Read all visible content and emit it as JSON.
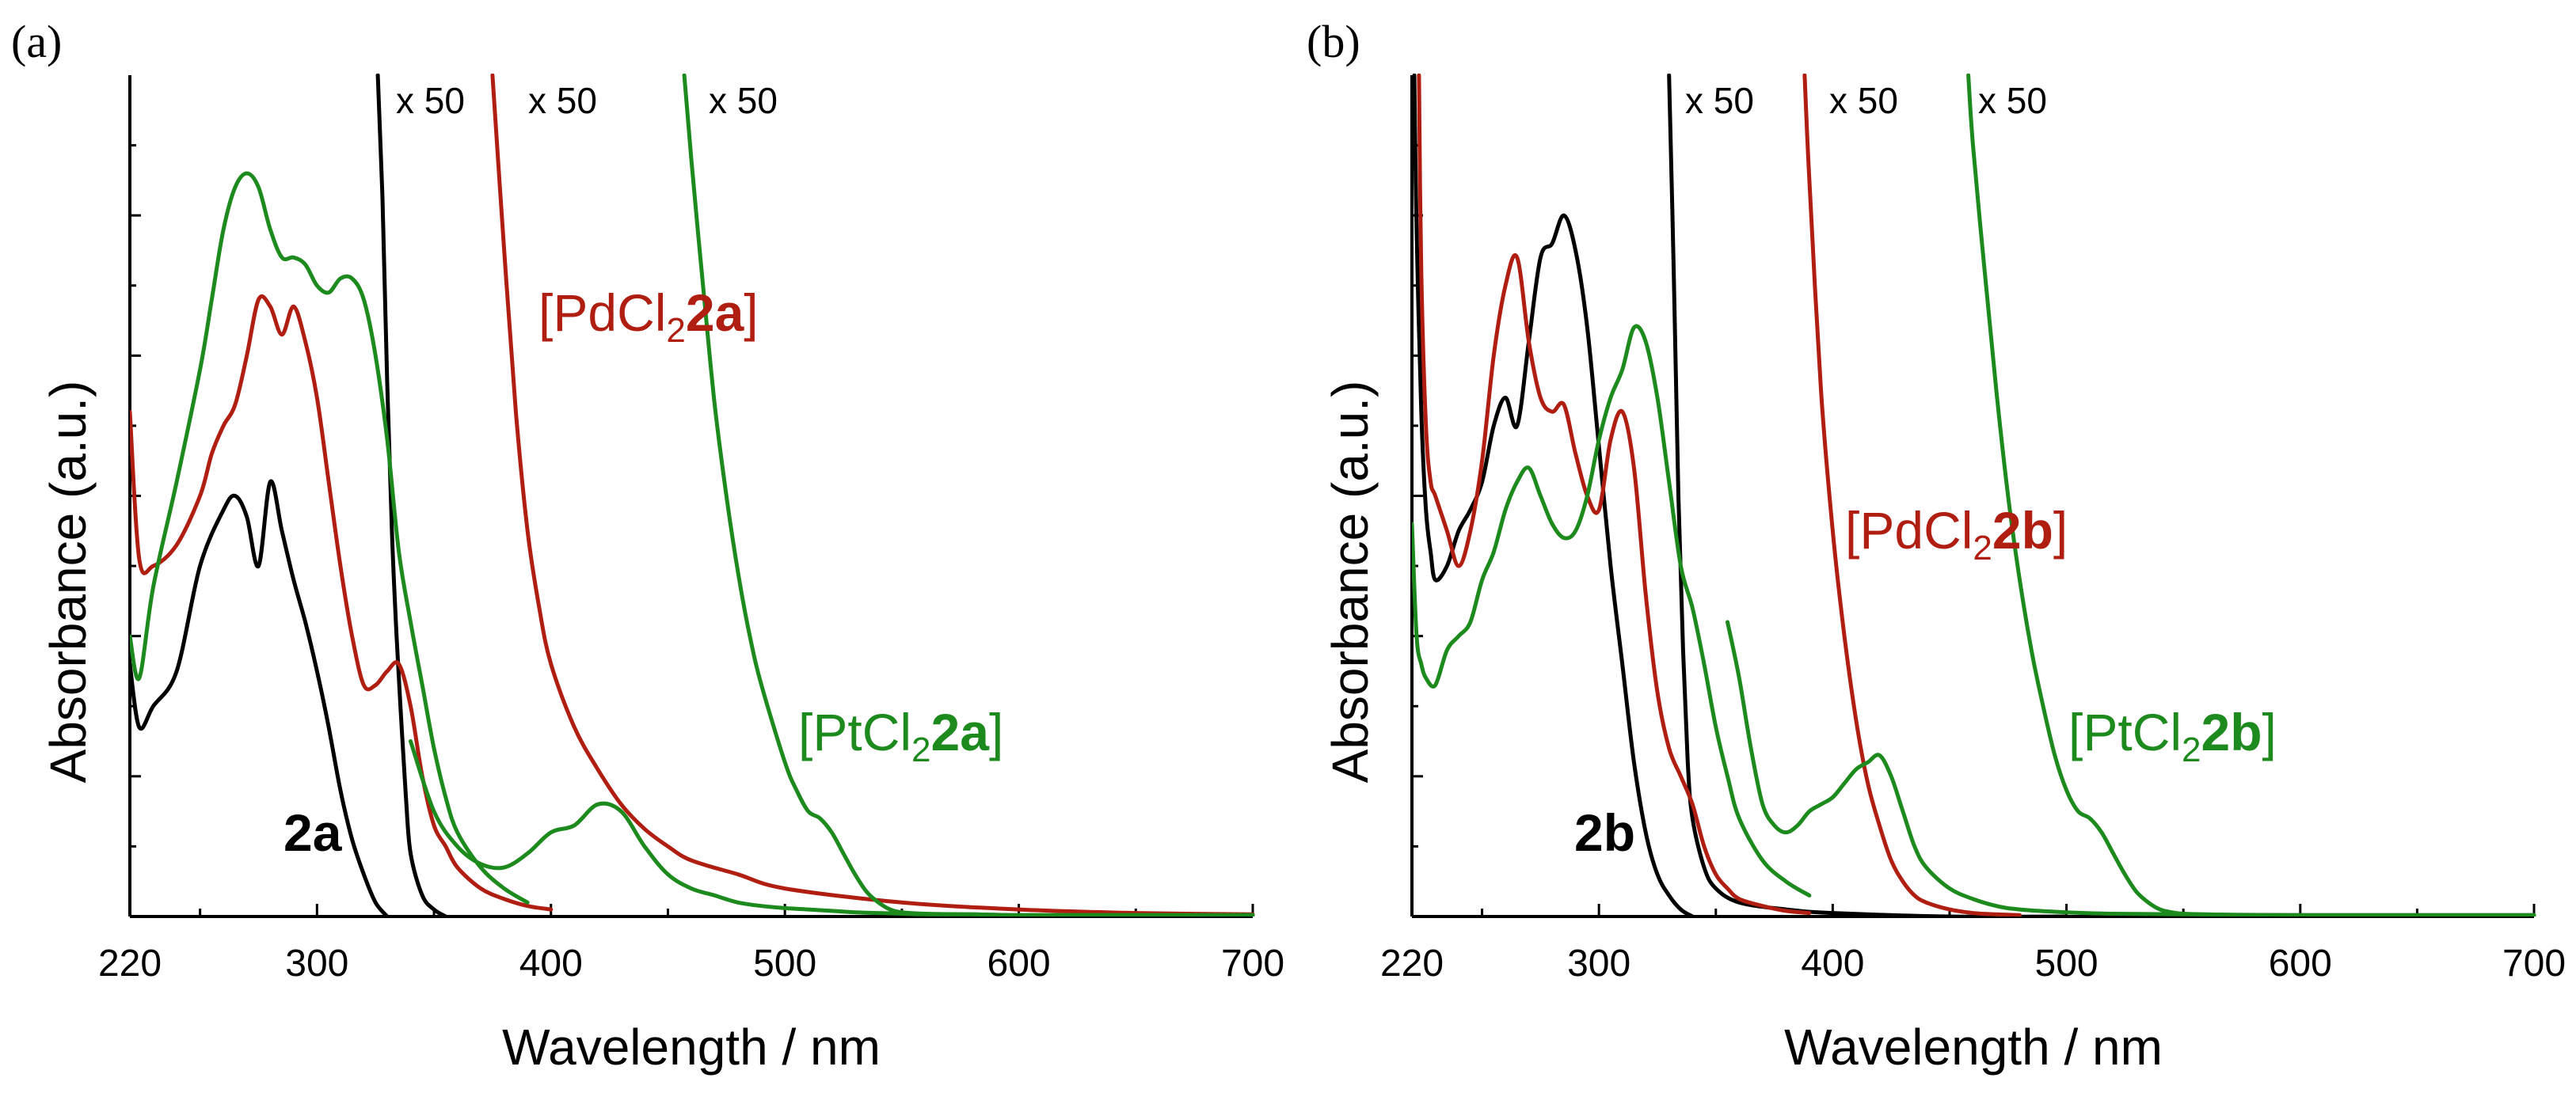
{
  "colors": {
    "ligand": "#000000",
    "pd": "#b01e12",
    "pt": "#1d8a1d"
  },
  "chart_data": [
    {
      "type": "line",
      "panel": "(a)",
      "xlabel": "Wavelength / nm",
      "ylabel": "Absorbance (a.u.)",
      "xlim": [
        220,
        700
      ],
      "ylim": [
        0,
        1.2
      ],
      "xticks": [
        220,
        300,
        400,
        500,
        600,
        700
      ],
      "multipliers": [
        "x 50",
        "x 50",
        "x 50"
      ],
      "series": [
        {
          "name": "2a",
          "color": "ligand",
          "label_parts": [
            {
              "text": "2a",
              "bold": true
            }
          ],
          "x": [
            220,
            224,
            230,
            240,
            250,
            260,
            265,
            270,
            275,
            280,
            285,
            290,
            295,
            300,
            305,
            310,
            315,
            320,
            325,
            330
          ],
          "y": [
            0.36,
            0.27,
            0.3,
            0.35,
            0.5,
            0.58,
            0.6,
            0.57,
            0.5,
            0.62,
            0.55,
            0.48,
            0.42,
            0.35,
            0.27,
            0.18,
            0.11,
            0.06,
            0.02,
            0.0
          ]
        },
        {
          "name": "2a x 50",
          "color": "ligand",
          "x": [
            326,
            328,
            330,
            332,
            334,
            336,
            338,
            340,
            345,
            350,
            355
          ],
          "y": [
            1.2,
            1.02,
            0.76,
            0.55,
            0.4,
            0.28,
            0.17,
            0.09,
            0.03,
            0.01,
            0.0
          ]
        },
        {
          "name": "[PdCl22a]",
          "color": "pd",
          "label_parts": [
            {
              "text": "[PdCl",
              "bold": false
            },
            {
              "text": "2",
              "sub": true
            },
            {
              "text": "2a",
              "bold": true
            },
            {
              "text": "]",
              "bold": false
            }
          ],
          "x": [
            220,
            224,
            230,
            240,
            250,
            255,
            260,
            265,
            270,
            275,
            280,
            285,
            290,
            295,
            300,
            305,
            310,
            315,
            320,
            325,
            330,
            335,
            340,
            345,
            350,
            355,
            360,
            370,
            380,
            390,
            400
          ],
          "y": [
            0.72,
            0.51,
            0.5,
            0.53,
            0.6,
            0.66,
            0.7,
            0.73,
            0.8,
            0.88,
            0.87,
            0.83,
            0.87,
            0.82,
            0.74,
            0.62,
            0.5,
            0.4,
            0.33,
            0.33,
            0.35,
            0.36,
            0.3,
            0.2,
            0.13,
            0.1,
            0.07,
            0.04,
            0.025,
            0.015,
            0.01
          ]
        },
        {
          "name": "[PdCl22a] x 50",
          "color": "pd",
          "x": [
            375,
            380,
            385,
            390,
            395,
            400,
            410,
            420,
            430,
            440,
            450,
            460,
            480,
            500,
            550,
            600,
            650,
            700
          ],
          "y": [
            1.2,
            0.95,
            0.72,
            0.55,
            0.44,
            0.36,
            0.27,
            0.21,
            0.16,
            0.125,
            0.1,
            0.08,
            0.06,
            0.04,
            0.02,
            0.01,
            0.005,
            0.003
          ]
        },
        {
          "name": "[PtCl22a]",
          "color": "pt",
          "label_parts": [
            {
              "text": "[PtCl",
              "bold": false
            },
            {
              "text": "2",
              "sub": true
            },
            {
              "text": "2a",
              "bold": true
            },
            {
              "text": "]",
              "bold": false
            }
          ],
          "x": [
            220,
            224,
            230,
            240,
            250,
            255,
            260,
            265,
            270,
            275,
            280,
            285,
            290,
            295,
            300,
            305,
            310,
            315,
            320,
            325,
            330,
            335,
            340,
            345,
            350,
            355,
            360,
            370,
            380,
            390
          ],
          "y": [
            0.4,
            0.34,
            0.47,
            0.62,
            0.78,
            0.88,
            0.98,
            1.04,
            1.06,
            1.04,
            0.98,
            0.94,
            0.94,
            0.93,
            0.9,
            0.89,
            0.91,
            0.91,
            0.88,
            0.8,
            0.68,
            0.52,
            0.42,
            0.33,
            0.24,
            0.17,
            0.12,
            0.07,
            0.04,
            0.02
          ]
        },
        {
          "name": "[PtCl22a] x 50",
          "color": "pt",
          "x": [
            340,
            350,
            360,
            370,
            380,
            390,
            400,
            410,
            420,
            430,
            440,
            450,
            460,
            470,
            480,
            490,
            500,
            510,
            520,
            530,
            540,
            550,
            560,
            580,
            600,
            650,
            700
          ],
          "y": [
            0.25,
            0.15,
            0.1,
            0.075,
            0.07,
            0.09,
            0.12,
            0.13,
            0.16,
            0.15,
            0.1,
            0.06,
            0.04,
            0.03,
            0.02,
            0.015,
            0.012,
            0.01,
            0.008,
            0.006,
            0.005,
            0.004,
            0.003,
            0.003,
            0.002,
            0.002,
            0.002
          ]
        },
        {
          "name": "[PtCl22a] x 50 tail",
          "color": "pt",
          "x": [
            457,
            460,
            465,
            470,
            475,
            480,
            485,
            490,
            500,
            505,
            510,
            515,
            520,
            525,
            530,
            535,
            540,
            545,
            550,
            560,
            580,
            600,
            650,
            700
          ],
          "y": [
            1.2,
            1.08,
            0.9,
            0.73,
            0.6,
            0.49,
            0.4,
            0.33,
            0.22,
            0.18,
            0.15,
            0.14,
            0.12,
            0.09,
            0.06,
            0.035,
            0.02,
            0.01,
            0.006,
            0.004,
            0.003,
            0.002,
            0.002,
            0.002
          ]
        }
      ]
    },
    {
      "type": "line",
      "panel": "(b)",
      "xlabel": "Wavelength / nm",
      "ylabel": "Absorbance (a.u.)",
      "xlim": [
        220,
        700
      ],
      "ylim": [
        0,
        1.2
      ],
      "xticks": [
        220,
        300,
        400,
        500,
        600,
        700
      ],
      "multipliers": [
        "x 50",
        "x 50",
        "x 50"
      ],
      "series": [
        {
          "name": "2b",
          "color": "ligand",
          "label_parts": [
            {
              "text": "2b",
              "bold": true
            }
          ],
          "x": [
            221,
            222,
            224,
            226,
            228,
            230,
            235,
            240,
            245,
            250,
            255,
            260,
            265,
            270,
            275,
            280,
            285,
            290,
            295,
            300,
            305,
            310,
            315,
            320,
            325,
            330,
            335,
            340
          ],
          "y": [
            1.2,
            0.98,
            0.72,
            0.58,
            0.52,
            0.48,
            0.5,
            0.55,
            0.58,
            0.62,
            0.7,
            0.74,
            0.7,
            0.82,
            0.94,
            0.96,
            1.0,
            0.95,
            0.84,
            0.67,
            0.5,
            0.36,
            0.22,
            0.12,
            0.06,
            0.03,
            0.01,
            0.0
          ]
        },
        {
          "name": "2b x 50",
          "color": "ligand",
          "x": [
            330,
            332,
            334,
            336,
            338,
            340,
            345,
            350,
            360,
            380,
            400,
            450,
            500
          ],
          "y": [
            1.2,
            0.92,
            0.6,
            0.38,
            0.22,
            0.14,
            0.07,
            0.04,
            0.02,
            0.01,
            0.005,
            0.0,
            0.0
          ]
        },
        {
          "name": "[PdCl22b]",
          "color": "pd",
          "label_parts": [
            {
              "text": "[PdCl",
              "bold": false
            },
            {
              "text": "2",
              "sub": true
            },
            {
              "text": "2b",
              "bold": true
            },
            {
              "text": "]",
              "bold": false
            }
          ],
          "x": [
            223,
            224,
            226,
            228,
            230,
            235,
            240,
            245,
            250,
            255,
            260,
            265,
            270,
            275,
            280,
            285,
            290,
            295,
            300,
            305,
            310,
            315,
            320,
            325,
            330,
            335,
            340,
            345,
            350,
            355,
            360,
            370,
            380,
            390
          ],
          "y": [
            1.2,
            0.92,
            0.7,
            0.62,
            0.6,
            0.55,
            0.5,
            0.55,
            0.65,
            0.8,
            0.9,
            0.94,
            0.82,
            0.74,
            0.72,
            0.73,
            0.66,
            0.6,
            0.58,
            0.68,
            0.72,
            0.64,
            0.46,
            0.32,
            0.24,
            0.2,
            0.16,
            0.1,
            0.06,
            0.04,
            0.025,
            0.015,
            0.008,
            0.005
          ]
        },
        {
          "name": "[PdCl22b] x 50",
          "color": "pd",
          "x": [
            388,
            390,
            395,
            400,
            405,
            410,
            415,
            420,
            425,
            430,
            435,
            440,
            450,
            460,
            470,
            480
          ],
          "y": [
            1.2,
            1.05,
            0.75,
            0.55,
            0.4,
            0.28,
            0.19,
            0.13,
            0.08,
            0.05,
            0.03,
            0.02,
            0.01,
            0.005,
            0.003,
            0.002
          ]
        },
        {
          "name": "[PtCl22b]",
          "color": "pt",
          "label_parts": [
            {
              "text": "[PtCl",
              "bold": false
            },
            {
              "text": "2",
              "sub": true
            },
            {
              "text": "2b",
              "bold": true
            },
            {
              "text": "]",
              "bold": false
            }
          ],
          "x": [
            220,
            222,
            224,
            226,
            230,
            235,
            240,
            245,
            250,
            255,
            260,
            265,
            270,
            275,
            280,
            285,
            290,
            295,
            300,
            305,
            310,
            315,
            320,
            325,
            330,
            335,
            340,
            345,
            350,
            355,
            360,
            370,
            380,
            390
          ],
          "y": [
            0.56,
            0.4,
            0.36,
            0.34,
            0.33,
            0.38,
            0.4,
            0.42,
            0.48,
            0.52,
            0.58,
            0.62,
            0.64,
            0.6,
            0.56,
            0.54,
            0.55,
            0.6,
            0.68,
            0.74,
            0.78,
            0.84,
            0.82,
            0.74,
            0.62,
            0.5,
            0.44,
            0.36,
            0.27,
            0.2,
            0.14,
            0.08,
            0.05,
            0.03
          ]
        },
        {
          "name": "[PtCl22b] x 50",
          "color": "pt",
          "x": [
            355,
            360,
            365,
            370,
            375,
            380,
            385,
            390,
            395,
            400,
            405,
            410,
            415,
            420,
            425,
            430,
            435,
            440,
            450,
            460,
            470,
            480,
            500,
            520,
            550,
            600,
            650,
            700
          ],
          "y": [
            0.42,
            0.34,
            0.24,
            0.16,
            0.13,
            0.12,
            0.13,
            0.15,
            0.16,
            0.17,
            0.19,
            0.21,
            0.22,
            0.23,
            0.2,
            0.15,
            0.1,
            0.07,
            0.04,
            0.025,
            0.015,
            0.01,
            0.006,
            0.004,
            0.003,
            0.002,
            0.002,
            0.002
          ]
        },
        {
          "name": "[PtCl22b] x 50 tail",
          "color": "pt",
          "x": [
            458,
            460,
            465,
            470,
            475,
            480,
            485,
            490,
            495,
            500,
            505,
            510,
            515,
            520,
            525,
            530,
            535,
            540,
            545,
            550,
            560,
            580,
            600,
            650,
            700
          ],
          "y": [
            1.2,
            1.1,
            0.92,
            0.75,
            0.6,
            0.48,
            0.38,
            0.3,
            0.23,
            0.18,
            0.15,
            0.14,
            0.12,
            0.09,
            0.06,
            0.035,
            0.02,
            0.01,
            0.006,
            0.004,
            0.003,
            0.002,
            0.002,
            0.002,
            0.002
          ]
        }
      ]
    }
  ]
}
